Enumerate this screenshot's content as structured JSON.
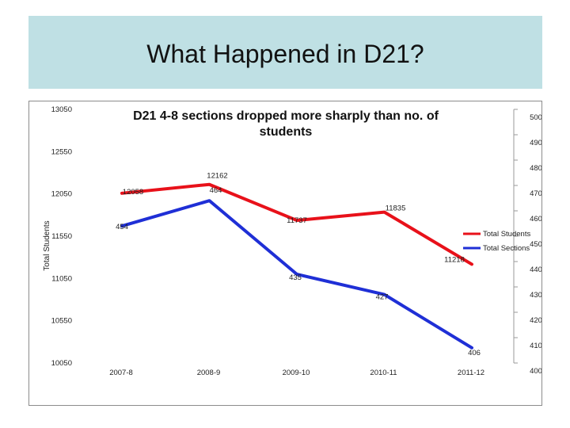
{
  "slide": {
    "title": "What Happened in D21?"
  },
  "chart_data": {
    "type": "line",
    "title_line1": "D21 4-8 sections dropped more sharply than no. of",
    "title_line2": "students",
    "categories": [
      "2007-8",
      "2008-9",
      "2009-10",
      "2010-11",
      "2011-12"
    ],
    "series": [
      {
        "name": "Total Students",
        "axis": "left",
        "color": "#e8111a",
        "values": [
          12058,
          12162,
          11737,
          11835,
          11218
        ],
        "labels": [
          "12058",
          "12162",
          "11737",
          "11835",
          "11218"
        ]
      },
      {
        "name": "Total Sections",
        "axis": "right",
        "color": "#1f2fd6",
        "values": [
          454,
          464,
          435,
          427,
          406
        ],
        "labels": [
          "454",
          "464",
          "435",
          "427",
          "406"
        ]
      }
    ],
    "ylabel": "Total Students",
    "y_left": {
      "min": 10050,
      "max": 13050,
      "ticks": [
        13050,
        12550,
        12050,
        11550,
        11050,
        10550,
        10050
      ]
    },
    "y_right": {
      "min": 400,
      "max": 500,
      "ticks": [
        500,
        490,
        480,
        470,
        460,
        450,
        440,
        430,
        420,
        410,
        400
      ]
    },
    "legend_position": "right",
    "grid": false
  }
}
